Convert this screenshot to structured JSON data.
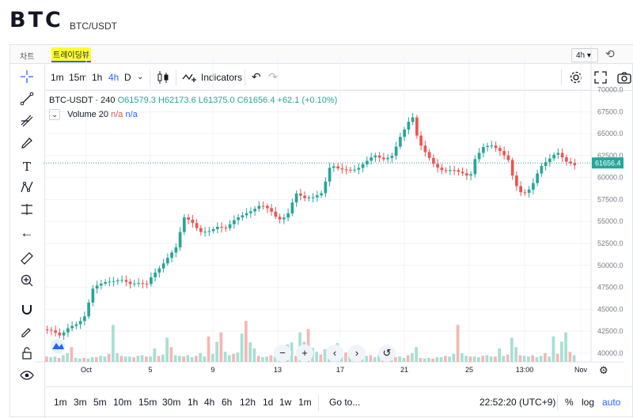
{
  "header": {
    "coin": "BTC",
    "pair": "BTC/USDT"
  },
  "tabs": [
    {
      "label": "차트"
    },
    {
      "label": "트레이딩뷰"
    }
  ],
  "timeframe_select": "4h ▾",
  "topbar": {
    "intervals": [
      "1m",
      "15m",
      "1h",
      "4h",
      "D"
    ],
    "active_interval": "4h",
    "indicators_label": "Indicators"
  },
  "legend": {
    "symbol": "BTC-USDT · 240",
    "open": "O61579.3",
    "high": "H62173.6",
    "low": "L61375.0",
    "close": "C61656.4",
    "change": "+62.1 (+0.10%)",
    "volume_label": "Volume 20",
    "volume_val1": "n/a",
    "volume_val2": "n/a"
  },
  "bottombar": {
    "ranges": [
      "1m",
      "3m",
      "5m",
      "10m",
      "15m",
      "30m",
      "1h",
      "4h",
      "6h",
      "12h",
      "1d",
      "1w",
      "1m"
    ],
    "goto": "Go to...",
    "time": "22:52:20 (UTC+9)",
    "percent": "%",
    "log": "log",
    "auto": "auto"
  },
  "colors": {
    "up": "#26a69a",
    "down": "#ef5350",
    "accent": "#2962ff"
  },
  "chart_data": {
    "type": "candlestick",
    "symbol": "BTC-USDT",
    "interval": "240",
    "last_price": "61656.4",
    "y_ticks": [
      "70000.0",
      "67500.0",
      "65000.0",
      "62500.0",
      "60000.0",
      "57500.0",
      "55000.0",
      "52500.0",
      "50000.0",
      "47500.0",
      "45000.0",
      "42500.0",
      "40000.0"
    ],
    "ylim": [
      39000,
      70500
    ],
    "x_ticks": [
      "Oct",
      "5",
      "9",
      "13",
      "17",
      "21",
      "25",
      "13:00",
      "Nov"
    ],
    "price_path": [
      [
        0,
        42700
      ],
      [
        2,
        42300
      ],
      [
        4,
        41600
      ],
      [
        6,
        42800
      ],
      [
        8,
        43500
      ],
      [
        10,
        44800
      ],
      [
        11,
        47500
      ],
      [
        12,
        47900
      ],
      [
        14,
        48100
      ],
      [
        16,
        47900
      ],
      [
        18,
        48000
      ],
      [
        20,
        47700
      ],
      [
        22,
        48100
      ],
      [
        24,
        48200
      ],
      [
        25,
        49200
      ],
      [
        27,
        50000
      ],
      [
        29,
        51000
      ],
      [
        31,
        52000
      ],
      [
        32,
        55200
      ],
      [
        34,
        54800
      ],
      [
        36,
        53900
      ],
      [
        38,
        54200
      ],
      [
        40,
        54700
      ],
      [
        42,
        54300
      ],
      [
        44,
        55000
      ],
      [
        46,
        55400
      ],
      [
        48,
        56000
      ],
      [
        50,
        57000
      ],
      [
        52,
        56700
      ],
      [
        54,
        55500
      ],
      [
        56,
        55700
      ],
      [
        58,
        58000
      ],
      [
        60,
        57300
      ],
      [
        62,
        57500
      ],
      [
        64,
        58300
      ],
      [
        66,
        61800
      ],
      [
        68,
        61300
      ],
      [
        70,
        61000
      ],
      [
        72,
        60700
      ],
      [
        74,
        61400
      ],
      [
        76,
        62300
      ],
      [
        78,
        62100
      ],
      [
        80,
        62700
      ],
      [
        82,
        65000
      ],
      [
        84,
        66600
      ],
      [
        85,
        66900
      ],
      [
        86,
        64000
      ],
      [
        88,
        62300
      ],
      [
        90,
        61000
      ],
      [
        92,
        60700
      ],
      [
        94,
        61200
      ],
      [
        96,
        60900
      ],
      [
        98,
        60200
      ],
      [
        99,
        62000
      ],
      [
        101,
        63200
      ],
      [
        103,
        63300
      ],
      [
        105,
        62800
      ],
      [
        107,
        62000
      ],
      [
        108,
        59800
      ],
      [
        110,
        58400
      ],
      [
        112,
        59000
      ],
      [
        114,
        61000
      ],
      [
        116,
        61700
      ],
      [
        118,
        62600
      ],
      [
        120,
        61800
      ],
      [
        122,
        61656
      ]
    ],
    "volume_heights": [
      0.08,
      0.07,
      0.08,
      0.06,
      0.1,
      0.13,
      0.22,
      0.06,
      0.05,
      0.06,
      0.05,
      0.07,
      0.07,
      0.09,
      0.08,
      0.12,
      0.55,
      0.13,
      0.09,
      0.08,
      0.08,
      0.07,
      0.09,
      0.1,
      0.08,
      0.08,
      0.2,
      0.09,
      0.11,
      0.36,
      0.22,
      0.1,
      0.09,
      0.08,
      0.1,
      0.07,
      0.09,
      0.13,
      0.08,
      0.38,
      0.12,
      0.3,
      0.44,
      0.15,
      0.1,
      0.12,
      0.14,
      0.42,
      0.61,
      0.29,
      0.2,
      0.09,
      0.07,
      0.08,
      0.1,
      0.08,
      0.1,
      0.12,
      0.26,
      0.29,
      0.09,
      0.44,
      0.3,
      0.49,
      0.21,
      0.15,
      0.11,
      0.19,
      0.12,
      0.24,
      0.28,
      0.11,
      0.14,
      0.18,
      0.1,
      0.13,
      0.11,
      0.09,
      0.1,
      0.07,
      0.1,
      0.09,
      0.14
    ]
  }
}
